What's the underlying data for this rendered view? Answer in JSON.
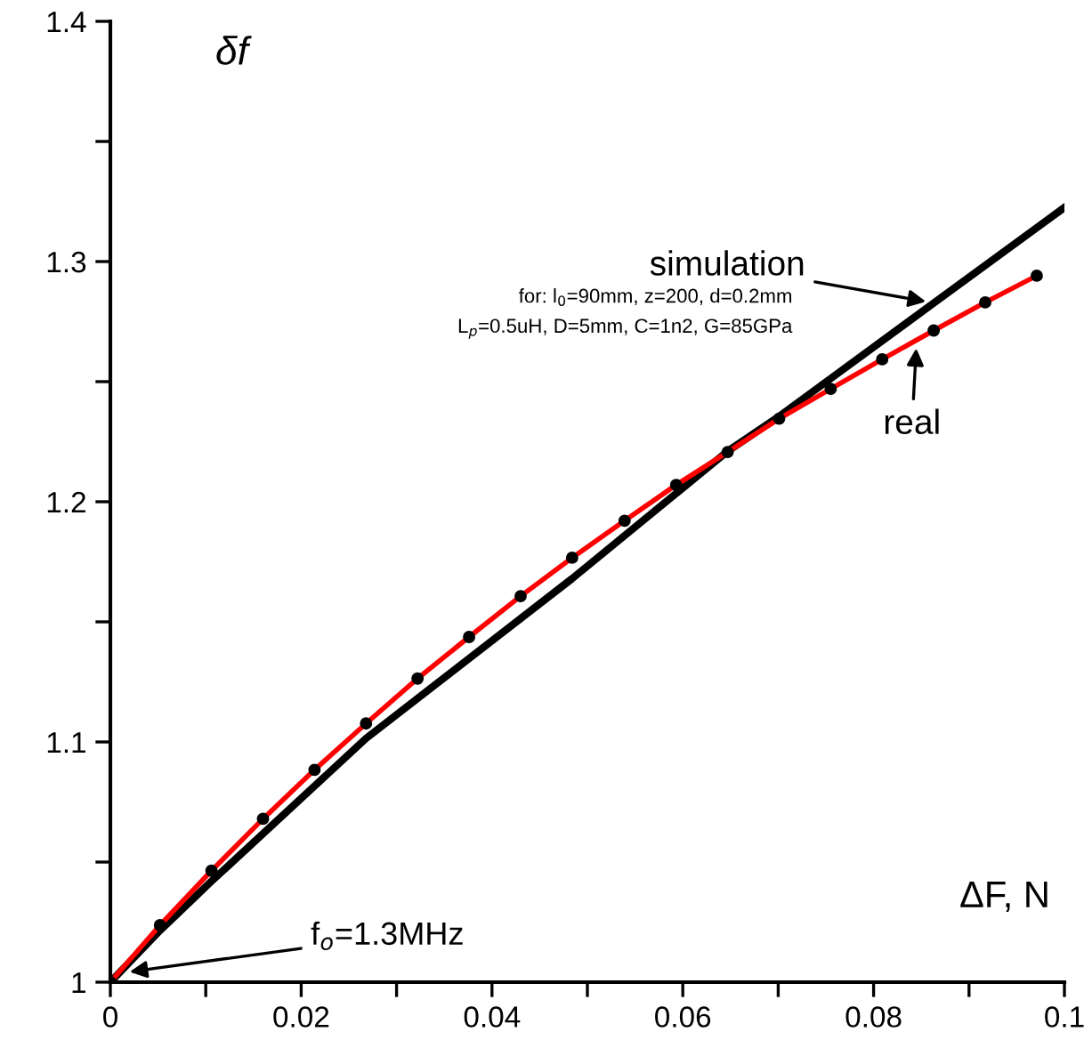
{
  "chart_data": {
    "type": "line",
    "xlabel": "ΔF, N",
    "ylabel": "δf",
    "xlim": [
      0,
      0.1
    ],
    "ylim": [
      1,
      1.4
    ],
    "xticks": [
      0,
      {
        "value": 0.01,
        "label": null
      },
      {
        "value": 0.02,
        "label": "0.02"
      },
      {
        "value": 0.03,
        "label": null
      },
      {
        "value": 0.04,
        "label": "0.04"
      },
      {
        "value": 0.05,
        "label": null
      },
      {
        "value": 0.06,
        "label": "0.06"
      },
      {
        "value": 0.07,
        "label": null
      },
      {
        "value": 0.08,
        "label": "0.08"
      },
      {
        "value": 0.09,
        "label": null
      },
      {
        "value": 0.1,
        "label": "0.1"
      }
    ],
    "yticks": [
      1,
      {
        "value": 1.05,
        "label": null
      },
      {
        "value": 1.1,
        "label": "1.1"
      },
      {
        "value": 1.15,
        "label": null
      },
      {
        "value": 1.2,
        "label": "1.2"
      },
      {
        "value": 1.25,
        "label": null
      },
      {
        "value": 1.3,
        "label": "1.3"
      },
      {
        "value": 1.35,
        "label": null
      },
      {
        "value": 1.4,
        "label": "1.4"
      }
    ],
    "grid": false,
    "legend": false,
    "series": [
      {
        "color": "#000000",
        "marker": "none",
        "x": [
          0,
          0.0052,
          0.0106,
          0.0268,
          0.0484,
          0.0647,
          0.0699,
          0.0864,
          0.1
        ],
        "values": [
          1,
          1.0215,
          1.042,
          1.1015,
          1.168,
          1.221,
          1.235,
          1.283,
          1.3225
        ]
      },
      {
        "color": "#ff0000",
        "marker": "circle",
        "x": [
          0,
          0.0052,
          0.0106,
          0.016,
          0.0214,
          0.0268,
          0.0322,
          0.0376,
          0.043,
          0.0484,
          0.0539,
          0.0593,
          0.0647,
          0.0701,
          0.0755,
          0.0809,
          0.0863,
          0.0917,
          0.0971
        ],
        "values": [
          1,
          1.0237,
          1.0464,
          1.068,
          1.0884,
          1.1077,
          1.1264,
          1.1437,
          1.1607,
          1.1767,
          1.1921,
          1.207,
          1.2207,
          1.2346,
          1.247,
          1.2593,
          1.2713,
          1.283,
          1.2941
        ]
      }
    ],
    "annotations": [
      {
        "text": "simulation",
        "x": 0.086,
        "y": 1.283
      },
      {
        "text": "real",
        "x": 0.0845,
        "y": 1.266
      },
      "for: l$_{0}$=90mm, z=200, d=0.2mm",
      "L$_{p}$=0.5uH, D=5mm, C=1n2, G=85GPa",
      {
        "text": "f$_{o}$=1.3MHz",
        "x": 0.0015,
        "y": 1.004
      }
    ]
  }
}
